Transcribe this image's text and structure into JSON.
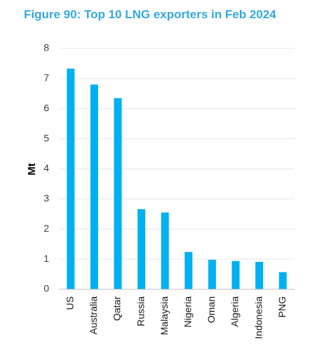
{
  "figure": {
    "title": "Figure 90: Top 10 LNG exporters in Feb 2024"
  },
  "colors": {
    "title": "#33a9dd",
    "bar": "#00b0f0",
    "grid": "#e6e6e6",
    "axis": "#bfbfbf"
  },
  "chart_data": {
    "type": "bar",
    "title": "Figure 90: Top 10 LNG exporters in Feb 2024",
    "xlabel": "",
    "ylabel": "Mt",
    "ylim": [
      0,
      8
    ],
    "yticks": [
      "0",
      "1",
      "2",
      "3",
      "4",
      "5",
      "6",
      "7",
      "8"
    ],
    "grid": true,
    "legend": "none",
    "categories": [
      "US",
      "Australia",
      "Qatar",
      "Russia",
      "Malaysia",
      "Nigeria",
      "Oman",
      "Algeria",
      "Indonesia",
      "PNG"
    ],
    "values": [
      7.33,
      6.8,
      6.35,
      2.66,
      2.55,
      1.24,
      0.98,
      0.94,
      0.91,
      0.57
    ]
  }
}
